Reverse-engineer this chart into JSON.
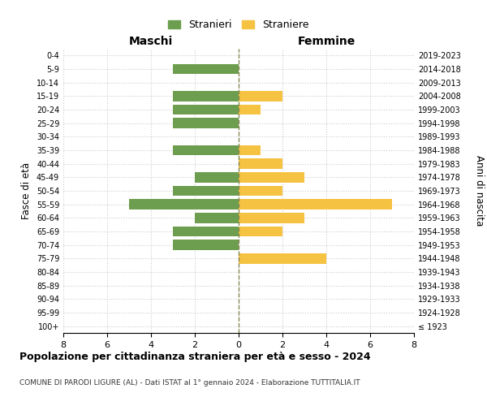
{
  "age_groups": [
    "100+",
    "95-99",
    "90-94",
    "85-89",
    "80-84",
    "75-79",
    "70-74",
    "65-69",
    "60-64",
    "55-59",
    "50-54",
    "45-49",
    "40-44",
    "35-39",
    "30-34",
    "25-29",
    "20-24",
    "15-19",
    "10-14",
    "5-9",
    "0-4"
  ],
  "anni_nascita": [
    "≤ 1923",
    "1924-1928",
    "1929-1933",
    "1934-1938",
    "1939-1943",
    "1944-1948",
    "1949-1953",
    "1954-1958",
    "1959-1963",
    "1964-1968",
    "1969-1973",
    "1974-1978",
    "1979-1983",
    "1984-1988",
    "1989-1993",
    "1994-1998",
    "1999-2003",
    "2004-2008",
    "2009-2013",
    "2014-2018",
    "2019-2023"
  ],
  "maschi": [
    0,
    0,
    0,
    0,
    0,
    0,
    3,
    3,
    2,
    5,
    3,
    2,
    0,
    3,
    0,
    3,
    3,
    3,
    0,
    3,
    0
  ],
  "femmine": [
    0,
    0,
    0,
    0,
    0,
    4,
    0,
    2,
    3,
    7,
    2,
    3,
    2,
    1,
    0,
    0,
    1,
    2,
    0,
    0,
    0
  ],
  "maschi_color": "#6d9e4f",
  "femmine_color": "#f5c242",
  "title": "Popolazione per cittadinanza straniera per età e sesso - 2024",
  "subtitle": "COMUNE DI PARODI LIGURE (AL) - Dati ISTAT al 1° gennaio 2024 - Elaborazione TUTTITALIA.IT",
  "xlabel_left": "Maschi",
  "xlabel_right": "Femmine",
  "ylabel_left": "Fasce di età",
  "ylabel_right": "Anni di nascita",
  "legend_maschi": "Stranieri",
  "legend_femmine": "Straniere",
  "xlim": 8,
  "background_color": "#ffffff",
  "grid_color": "#cccccc",
  "dashed_line_color": "#888855"
}
